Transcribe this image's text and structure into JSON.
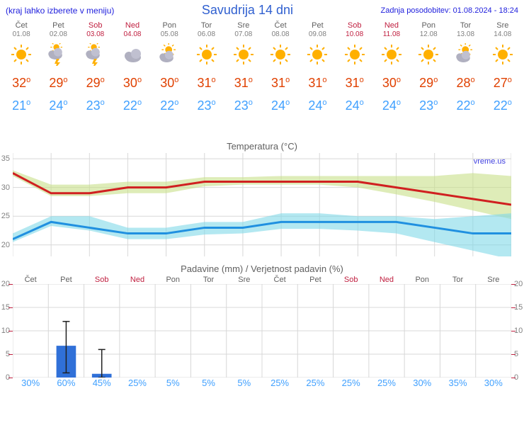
{
  "header": {
    "left": "(kraj lahko izberete v meniju)",
    "center": "Savudrija 14 dni",
    "right": "Zadnja posodobitev: 01.08.2024 - 18:24"
  },
  "forecast": [
    {
      "day": "Čet",
      "date": "01.08",
      "weekend": false,
      "icon": "sun",
      "high": 32,
      "low": 21
    },
    {
      "day": "Pet",
      "date": "02.08",
      "weekend": false,
      "icon": "storm",
      "high": 29,
      "low": 24
    },
    {
      "day": "Sob",
      "date": "03.08",
      "weekend": true,
      "icon": "storm",
      "high": 29,
      "low": 23
    },
    {
      "day": "Ned",
      "date": "04.08",
      "weekend": true,
      "icon": "cloud",
      "high": 30,
      "low": 22
    },
    {
      "day": "Pon",
      "date": "05.08",
      "weekend": false,
      "icon": "partly",
      "high": 30,
      "low": 22
    },
    {
      "day": "Tor",
      "date": "06.08",
      "weekend": false,
      "icon": "sun",
      "high": 31,
      "low": 23
    },
    {
      "day": "Sre",
      "date": "07.08",
      "weekend": false,
      "icon": "sun",
      "high": 31,
      "low": 23
    },
    {
      "day": "Čet",
      "date": "08.08",
      "weekend": false,
      "icon": "sun",
      "high": 31,
      "low": 24
    },
    {
      "day": "Pet",
      "date": "09.08",
      "weekend": false,
      "icon": "sun",
      "high": 31,
      "low": 24
    },
    {
      "day": "Sob",
      "date": "10.08",
      "weekend": true,
      "icon": "sun",
      "high": 31,
      "low": 24
    },
    {
      "day": "Ned",
      "date": "11.08",
      "weekend": true,
      "icon": "sun",
      "high": 30,
      "low": 24
    },
    {
      "day": "Pon",
      "date": "12.08",
      "weekend": false,
      "icon": "sun",
      "high": 29,
      "low": 23
    },
    {
      "day": "Tor",
      "date": "13.08",
      "weekend": false,
      "icon": "partly",
      "high": 28,
      "low": 22
    },
    {
      "day": "Sre",
      "date": "14.08",
      "weekend": false,
      "icon": "sun",
      "high": 27,
      "low": 22
    }
  ],
  "temp_chart": {
    "title": "Temperatura (°C)",
    "watermark": "vreme.us",
    "ylim": [
      18,
      36
    ],
    "yticks": [
      20,
      25,
      30,
      35
    ],
    "grid_color": "#d8d8d8",
    "high_line": {
      "color": "#d02020",
      "width": 3,
      "values": [
        32.5,
        29,
        29,
        30,
        30,
        31,
        31,
        31,
        31,
        31,
        30,
        29,
        28,
        27
      ]
    },
    "high_band": {
      "color": "#c8e088",
      "opacity": 0.6,
      "upper": [
        33,
        30.5,
        30.5,
        31,
        31,
        31.8,
        31.8,
        32,
        32,
        32,
        32,
        32,
        32.5,
        32
      ],
      "lower": [
        32,
        28.5,
        28.5,
        29,
        29,
        30.2,
        30.5,
        30.5,
        30.5,
        30,
        28.8,
        27.5,
        26,
        24.5
      ]
    },
    "low_line": {
      "color": "#2090e0",
      "width": 3,
      "values": [
        21,
        24,
        23,
        22,
        22,
        23,
        23,
        24,
        24,
        24,
        24,
        23,
        22,
        22
      ]
    },
    "low_band": {
      "color": "#80d8e8",
      "opacity": 0.6,
      "upper": [
        22,
        25,
        25,
        23,
        23,
        24,
        24,
        25.5,
        25.5,
        25,
        25,
        24.5,
        25,
        25.5
      ],
      "lower": [
        20.5,
        23.3,
        22.5,
        21,
        21,
        21.8,
        22,
        22.8,
        22.8,
        22.5,
        22,
        20.5,
        19,
        17.5
      ]
    }
  },
  "precip_chart": {
    "title": "Padavine (mm) / Verjetnost padavin (%)",
    "ylim": [
      0,
      20
    ],
    "yticks": [
      0,
      5,
      10,
      15,
      20
    ],
    "grid_color": "#d8d8d8",
    "bar_color": "#3070d8",
    "errorbar_color": "#202020",
    "bars": [
      {
        "val": 0,
        "err_lo": 0,
        "err_hi": 0
      },
      {
        "val": 6.8,
        "err_lo": 1,
        "err_hi": 12
      },
      {
        "val": 0.8,
        "err_lo": 0,
        "err_hi": 6
      },
      {
        "val": 0,
        "err_lo": 0,
        "err_hi": 0
      },
      {
        "val": 0,
        "err_lo": 0,
        "err_hi": 0
      },
      {
        "val": 0,
        "err_lo": 0,
        "err_hi": 0
      },
      {
        "val": 0,
        "err_lo": 0,
        "err_hi": 0
      },
      {
        "val": 0,
        "err_lo": 0,
        "err_hi": 0
      },
      {
        "val": 0,
        "err_lo": 0,
        "err_hi": 0
      },
      {
        "val": 0,
        "err_lo": 0,
        "err_hi": 0
      },
      {
        "val": 0,
        "err_lo": 0,
        "err_hi": 0
      },
      {
        "val": 0,
        "err_lo": 0,
        "err_hi": 0
      },
      {
        "val": 0,
        "err_lo": 0,
        "err_hi": 0
      },
      {
        "val": 0,
        "err_lo": 0,
        "err_hi": 0
      }
    ],
    "percents": [
      "30%",
      "60%",
      "45%",
      "25%",
      "5%",
      "5%",
      "5%",
      "25%",
      "25%",
      "25%",
      "25%",
      "30%",
      "35%",
      "30%"
    ]
  },
  "icons": {
    "sun": "#ffb000",
    "cloud": "#a0a0b0",
    "storm_bolt": "#ffb000"
  }
}
